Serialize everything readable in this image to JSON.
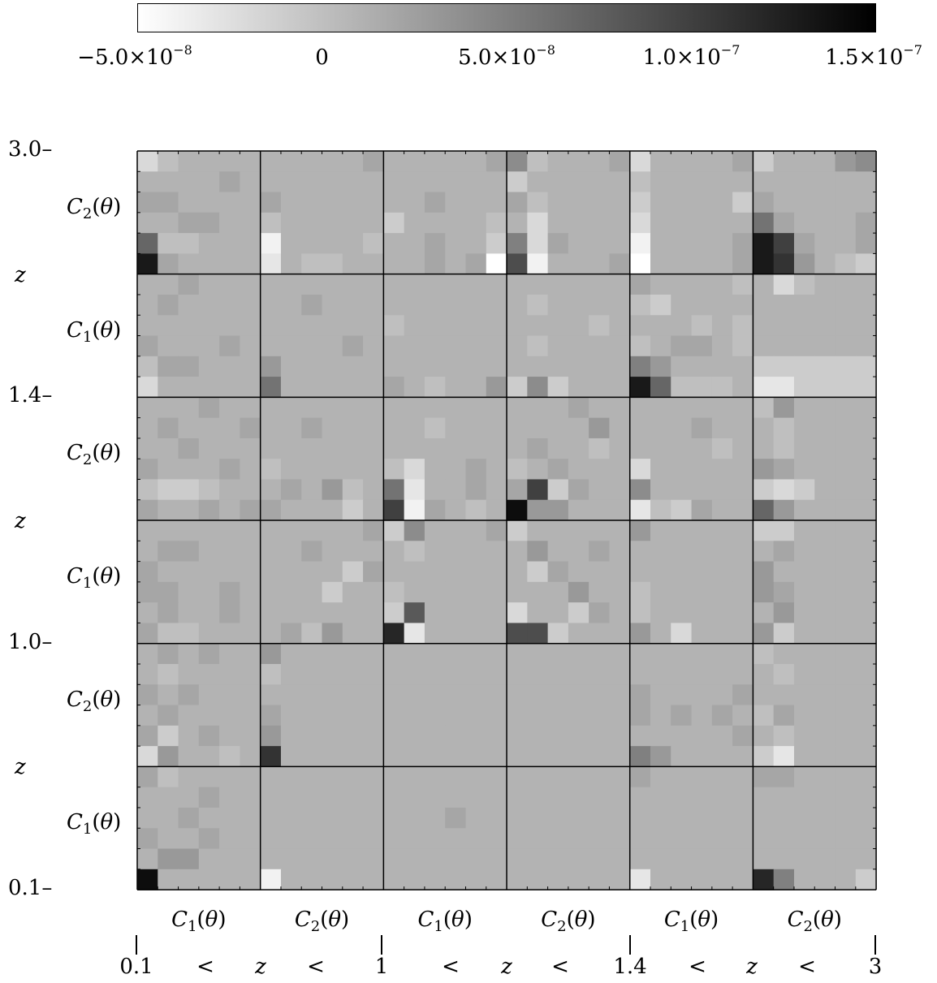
{
  "colorbar": {
    "ticks": [
      {
        "mant": "−5.0×10",
        "exp": "−8"
      },
      {
        "mant": "0",
        "exp": ""
      },
      {
        "mant": "5.0×10",
        "exp": "−8"
      },
      {
        "mant": "1.0×10",
        "exp": "−7"
      },
      {
        "mant": "1.5×10",
        "exp": "−7"
      }
    ]
  },
  "left_axis": {
    "z_ticks": [
      "3.0",
      "1.4",
      "1.0",
      "0.1"
    ],
    "z_label": "z",
    "block_labels": [
      {
        "main": "C",
        "sub": "2",
        "rest": "(θ)"
      },
      {
        "main": "C",
        "sub": "1",
        "rest": "(θ)"
      },
      {
        "main": "C",
        "sub": "2",
        "rest": "(θ)"
      },
      {
        "main": "C",
        "sub": "1",
        "rest": "(θ)"
      },
      {
        "main": "C",
        "sub": "2",
        "rest": "(θ)"
      },
      {
        "main": "C",
        "sub": "1",
        "rest": "(θ)"
      }
    ]
  },
  "bottom_axis": {
    "block_labels": [
      {
        "main": "C",
        "sub": "1",
        "rest": "(θ)"
      },
      {
        "main": "C",
        "sub": "2",
        "rest": "(θ)"
      },
      {
        "main": "C",
        "sub": "1",
        "rest": "(θ)"
      },
      {
        "main": "C",
        "sub": "2",
        "rest": "(θ)"
      },
      {
        "main": "C",
        "sub": "1",
        "rest": "(θ)"
      },
      {
        "main": "C",
        "sub": "2",
        "rest": "(θ)"
      }
    ],
    "z_row": [
      "0.1",
      "<",
      "z",
      "<",
      "1",
      "<",
      "z",
      "<",
      "1.4",
      "<",
      "z",
      "<",
      "3"
    ]
  },
  "chart_data": {
    "type": "heatmap",
    "title": "",
    "colorbar_range": [
      -5e-08,
      1.5e-07
    ],
    "colormap": [
      "#ffffff",
      "#000000"
    ],
    "rows_top_to_bottom": 36,
    "cols_left_to_right": 36,
    "block_size": 6,
    "values_e8": [
      [
        -2,
        0,
        1,
        1,
        1,
        1,
        1,
        1,
        1,
        1,
        1,
        2,
        1,
        1,
        1,
        1,
        1,
        2,
        4,
        0,
        1,
        1,
        1,
        2,
        -2,
        1,
        1,
        1,
        1,
        2,
        -1,
        1,
        1,
        1,
        3,
        4
      ],
      [
        1,
        1,
        1,
        1,
        2,
        1,
        1,
        1,
        1,
        1,
        1,
        1,
        1,
        1,
        1,
        1,
        1,
        1,
        -1,
        1,
        1,
        1,
        1,
        1,
        0,
        1,
        1,
        1,
        1,
        1,
        1,
        1,
        1,
        1,
        1,
        1
      ],
      [
        2,
        2,
        1,
        1,
        1,
        1,
        2,
        1,
        1,
        1,
        1,
        1,
        1,
        1,
        2,
        1,
        1,
        1,
        2,
        0,
        1,
        1,
        1,
        1,
        -1,
        1,
        1,
        1,
        1,
        -1,
        2,
        1,
        1,
        1,
        1,
        1
      ],
      [
        1,
        1,
        2,
        2,
        1,
        1,
        0,
        1,
        1,
        1,
        1,
        1,
        -1,
        1,
        1,
        1,
        1,
        0,
        1,
        -2,
        1,
        1,
        1,
        1,
        -2,
        1,
        1,
        1,
        1,
        1,
        6,
        2,
        1,
        1,
        1,
        2
      ],
      [
        7,
        0,
        0,
        1,
        1,
        1,
        -4,
        1,
        1,
        1,
        1,
        0,
        1,
        1,
        2,
        1,
        1,
        -1,
        5,
        -2,
        2,
        1,
        1,
        1,
        -4,
        1,
        1,
        1,
        1,
        2,
        13,
        10,
        2,
        1,
        1,
        2
      ],
      [
        13,
        2,
        1,
        1,
        1,
        1,
        -3,
        1,
        0,
        0,
        1,
        1,
        1,
        1,
        2,
        1,
        2,
        -5,
        9,
        -4,
        1,
        1,
        1,
        2,
        -5,
        1,
        1,
        1,
        1,
        2,
        13,
        11,
        3,
        1,
        0,
        -1
      ],
      [
        1,
        1,
        2,
        1,
        1,
        1,
        1,
        1,
        1,
        1,
        1,
        1,
        1,
        1,
        1,
        1,
        1,
        1,
        1,
        1,
        1,
        1,
        1,
        1,
        2,
        1,
        1,
        1,
        1,
        0,
        1,
        -2,
        0,
        1,
        1,
        1
      ],
      [
        1,
        2,
        1,
        1,
        1,
        1,
        1,
        1,
        2,
        1,
        1,
        1,
        1,
        1,
        1,
        1,
        1,
        1,
        1,
        0,
        1,
        1,
        1,
        1,
        0,
        -1,
        1,
        1,
        1,
        1,
        1,
        1,
        1,
        1,
        1,
        1
      ],
      [
        1,
        1,
        1,
        1,
        1,
        1,
        1,
        1,
        1,
        1,
        1,
        1,
        0,
        1,
        1,
        1,
        1,
        1,
        1,
        1,
        1,
        1,
        0,
        1,
        1,
        1,
        1,
        0,
        1,
        0,
        1,
        1,
        1,
        1,
        1,
        1
      ],
      [
        2,
        1,
        1,
        1,
        2,
        1,
        1,
        1,
        1,
        1,
        2,
        1,
        1,
        1,
        1,
        1,
        1,
        1,
        1,
        0,
        1,
        1,
        1,
        1,
        0,
        1,
        2,
        2,
        1,
        0,
        1,
        1,
        1,
        1,
        1,
        1
      ],
      [
        0,
        2,
        2,
        1,
        1,
        1,
        3,
        1,
        1,
        1,
        1,
        1,
        1,
        1,
        1,
        1,
        1,
        1,
        1,
        1,
        1,
        1,
        1,
        1,
        5,
        3,
        1,
        1,
        1,
        1,
        -1,
        -1,
        -1,
        -1,
        -1,
        -1
      ],
      [
        -2,
        1,
        1,
        1,
        1,
        1,
        6,
        1,
        1,
        1,
        1,
        1,
        2,
        1,
        0,
        1,
        1,
        3,
        -1,
        4,
        -1,
        1,
        1,
        1,
        13,
        7,
        0,
        0,
        0,
        1,
        -3,
        -3,
        -1,
        -1,
        -1,
        -1
      ],
      [
        1,
        1,
        1,
        2,
        1,
        1,
        1,
        1,
        1,
        1,
        1,
        1,
        1,
        1,
        1,
        1,
        1,
        1,
        1,
        1,
        1,
        2,
        1,
        1,
        1,
        1,
        1,
        1,
        1,
        1,
        0,
        3,
        1,
        1,
        1,
        1
      ],
      [
        1,
        2,
        1,
        1,
        1,
        2,
        1,
        1,
        2,
        1,
        1,
        1,
        1,
        1,
        0,
        1,
        1,
        1,
        1,
        1,
        1,
        1,
        3,
        1,
        1,
        1,
        1,
        2,
        1,
        1,
        1,
        0,
        1,
        1,
        1,
        1
      ],
      [
        1,
        1,
        2,
        1,
        1,
        1,
        1,
        1,
        1,
        1,
        1,
        1,
        1,
        1,
        1,
        1,
        1,
        1,
        1,
        2,
        1,
        1,
        0,
        1,
        1,
        1,
        1,
        1,
        0,
        1,
        1,
        0,
        1,
        1,
        1,
        1
      ],
      [
        2,
        1,
        1,
        1,
        2,
        1,
        0,
        1,
        1,
        1,
        1,
        1,
        0,
        -2,
        1,
        1,
        2,
        1,
        0,
        1,
        2,
        1,
        1,
        1,
        -2,
        1,
        1,
        1,
        1,
        1,
        3,
        2,
        1,
        1,
        1,
        1
      ],
      [
        0,
        -1,
        -1,
        0,
        1,
        1,
        1,
        2,
        1,
        3,
        0,
        1,
        6,
        -3,
        1,
        1,
        2,
        1,
        2,
        10,
        -1,
        2,
        1,
        1,
        4,
        1,
        1,
        1,
        1,
        1,
        -1,
        -2,
        -1,
        1,
        1,
        1
      ],
      [
        2,
        1,
        1,
        2,
        1,
        2,
        2,
        1,
        1,
        1,
        -1,
        1,
        10,
        -4,
        2,
        1,
        0,
        1,
        14,
        3,
        3,
        1,
        1,
        1,
        -3,
        0,
        -1,
        2,
        1,
        1,
        7,
        3,
        1,
        1,
        1,
        1
      ],
      [
        1,
        1,
        1,
        1,
        1,
        1,
        1,
        1,
        1,
        1,
        1,
        2,
        -1,
        4,
        1,
        1,
        1,
        2,
        -1,
        1,
        1,
        1,
        1,
        1,
        3,
        1,
        1,
        1,
        1,
        1,
        -1,
        -1,
        1,
        1,
        1,
        1
      ],
      [
        1,
        2,
        2,
        1,
        1,
        1,
        1,
        1,
        2,
        1,
        1,
        1,
        1,
        0,
        1,
        1,
        1,
        1,
        1,
        3,
        1,
        1,
        2,
        1,
        1,
        1,
        1,
        1,
        1,
        1,
        1,
        2,
        1,
        1,
        1,
        1
      ],
      [
        2,
        1,
        1,
        1,
        1,
        1,
        1,
        1,
        1,
        1,
        -1,
        2,
        1,
        1,
        1,
        1,
        1,
        1,
        1,
        -1,
        2,
        1,
        1,
        1,
        1,
        1,
        1,
        1,
        1,
        1,
        3,
        1,
        1,
        1,
        1,
        1
      ],
      [
        2,
        2,
        1,
        1,
        2,
        1,
        1,
        1,
        1,
        -1,
        1,
        1,
        0,
        1,
        1,
        1,
        1,
        1,
        1,
        1,
        1,
        3,
        1,
        1,
        0,
        1,
        1,
        1,
        1,
        1,
        3,
        2,
        1,
        1,
        1,
        1
      ],
      [
        1,
        2,
        1,
        1,
        2,
        1,
        1,
        1,
        1,
        1,
        1,
        1,
        -1,
        8,
        1,
        1,
        1,
        1,
        -2,
        1,
        1,
        -1,
        2,
        1,
        0,
        1,
        1,
        1,
        1,
        1,
        1,
        3,
        1,
        1,
        1,
        1
      ],
      [
        2,
        0,
        0,
        1,
        1,
        1,
        1,
        2,
        0,
        3,
        1,
        1,
        12,
        -3,
        1,
        1,
        1,
        1,
        9,
        9,
        -1,
        1,
        1,
        1,
        3,
        1,
        -2,
        1,
        1,
        1,
        3,
        -1,
        1,
        1,
        1,
        1
      ],
      [
        1,
        2,
        1,
        2,
        1,
        1,
        3,
        1,
        1,
        1,
        1,
        1,
        1,
        1,
        1,
        1,
        1,
        1,
        1,
        1,
        1,
        1,
        1,
        1,
        1,
        1,
        1,
        1,
        1,
        1,
        0,
        1,
        1,
        1,
        1,
        1
      ],
      [
        1,
        0,
        1,
        1,
        1,
        1,
        0,
        1,
        1,
        1,
        1,
        1,
        1,
        1,
        1,
        1,
        1,
        1,
        1,
        1,
        1,
        1,
        1,
        1,
        1,
        1,
        1,
        1,
        1,
        1,
        1,
        0,
        1,
        1,
        1,
        1
      ],
      [
        2,
        1,
        2,
        1,
        1,
        1,
        1,
        1,
        1,
        1,
        1,
        1,
        1,
        1,
        1,
        1,
        1,
        1,
        1,
        1,
        1,
        1,
        1,
        1,
        2,
        1,
        1,
        1,
        1,
        2,
        1,
        1,
        1,
        1,
        1,
        1
      ],
      [
        1,
        2,
        1,
        1,
        1,
        1,
        2,
        1,
        1,
        1,
        1,
        1,
        1,
        1,
        1,
        1,
        1,
        1,
        1,
        1,
        1,
        1,
        1,
        1,
        2,
        1,
        2,
        1,
        2,
        1,
        0,
        2,
        1,
        1,
        1,
        1
      ],
      [
        2,
        -1,
        1,
        2,
        1,
        1,
        3,
        1,
        1,
        1,
        1,
        1,
        1,
        1,
        1,
        1,
        1,
        1,
        1,
        1,
        1,
        1,
        1,
        1,
        1,
        1,
        1,
        1,
        1,
        2,
        1,
        0,
        1,
        1,
        1,
        1
      ],
      [
        -2,
        3,
        1,
        1,
        0,
        1,
        11,
        1,
        1,
        1,
        1,
        1,
        1,
        1,
        1,
        1,
        1,
        1,
        1,
        1,
        1,
        1,
        1,
        1,
        5,
        3,
        1,
        1,
        1,
        1,
        -1,
        -3,
        1,
        1,
        1,
        1
      ],
      [
        2,
        0,
        1,
        1,
        1,
        1,
        1,
        1,
        1,
        1,
        1,
        1,
        1,
        1,
        1,
        1,
        1,
        1,
        1,
        1,
        1,
        1,
        1,
        1,
        2,
        1,
        1,
        1,
        1,
        1,
        2,
        2,
        1,
        1,
        1,
        1
      ],
      [
        1,
        1,
        1,
        2,
        1,
        1,
        1,
        1,
        1,
        1,
        1,
        1,
        1,
        1,
        1,
        1,
        1,
        1,
        1,
        1,
        1,
        1,
        1,
        1,
        1,
        1,
        1,
        1,
        1,
        1,
        1,
        1,
        1,
        1,
        1,
        1
      ],
      [
        1,
        1,
        2,
        1,
        1,
        1,
        1,
        1,
        1,
        1,
        1,
        1,
        1,
        1,
        1,
        2,
        1,
        1,
        1,
        1,
        1,
        1,
        1,
        1,
        1,
        1,
        1,
        1,
        1,
        1,
        1,
        1,
        1,
        1,
        1,
        1
      ],
      [
        2,
        1,
        1,
        2,
        1,
        1,
        1,
        1,
        1,
        1,
        1,
        1,
        1,
        1,
        1,
        1,
        1,
        1,
        1,
        1,
        1,
        1,
        1,
        1,
        1,
        1,
        1,
        1,
        1,
        1,
        1,
        1,
        1,
        1,
        1,
        1
      ],
      [
        1,
        3,
        3,
        1,
        1,
        1,
        1,
        1,
        1,
        1,
        1,
        1,
        1,
        1,
        1,
        1,
        1,
        1,
        1,
        1,
        1,
        1,
        1,
        1,
        1,
        1,
        1,
        1,
        1,
        1,
        1,
        1,
        1,
        1,
        1,
        1
      ],
      [
        14,
        1,
        1,
        1,
        1,
        1,
        -4,
        1,
        1,
        1,
        1,
        1,
        1,
        1,
        1,
        1,
        1,
        1,
        1,
        1,
        1,
        1,
        1,
        1,
        -3,
        1,
        1,
        1,
        1,
        1,
        12,
        5,
        1,
        1,
        1,
        -1
      ]
    ]
  }
}
